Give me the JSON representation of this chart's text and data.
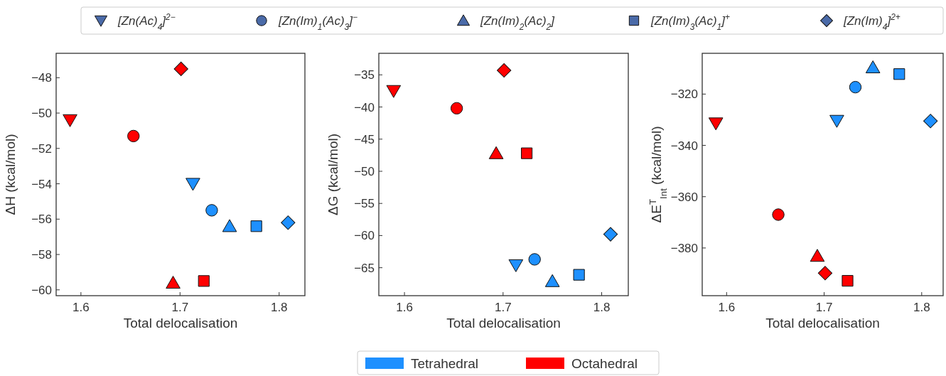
{
  "chart_data": [
    {
      "type": "scatter",
      "xlabel": "Total delocalisation",
      "ylabel": "ΔH (kcal/mol)",
      "xlim": [
        1.575,
        1.826
      ],
      "xticks": [
        1.6,
        1.7,
        1.8
      ],
      "ylim": [
        -60.33,
        -46.62
      ],
      "yticks": [
        -60,
        -58,
        -56,
        -54,
        -52,
        -50,
        -48
      ],
      "grid": false,
      "series": [
        {
          "marker": "triangle-down",
          "x": [
            1.713,
            1.589
          ],
          "values": [
            -54.0,
            -50.4
          ],
          "colors": [
            "#1e90ff",
            "#ff0000"
          ]
        },
        {
          "marker": "circle",
          "x": [
            1.732,
            1.653
          ],
          "values": [
            -55.5,
            -51.3
          ],
          "colors": [
            "#1e90ff",
            "#ff0000"
          ]
        },
        {
          "marker": "triangle",
          "x": [
            1.75,
            1.693
          ],
          "values": [
            -56.4,
            -59.6
          ],
          "colors": [
            "#1e90ff",
            "#ff0000"
          ]
        },
        {
          "marker": "square",
          "x": [
            1.777,
            1.724
          ],
          "values": [
            -56.4,
            -59.5
          ],
          "colors": [
            "#1e90ff",
            "#ff0000"
          ]
        },
        {
          "marker": "diamond",
          "x": [
            1.809,
            1.701
          ],
          "values": [
            -56.2,
            -47.5
          ],
          "colors": [
            "#1e90ff",
            "#ff0000"
          ]
        }
      ]
    },
    {
      "type": "scatter",
      "xlabel": "Total delocalisation",
      "ylabel": "ΔG (kcal/mol)",
      "xlim": [
        1.574,
        1.827
      ],
      "xticks": [
        1.6,
        1.7,
        1.8
      ],
      "ylim": [
        -69.35,
        -31.65
      ],
      "yticks": [
        -65,
        -60,
        -55,
        -50,
        -45,
        -40,
        -35
      ],
      "grid": false,
      "series": [
        {
          "marker": "triangle-down",
          "x": [
            1.713,
            1.589
          ],
          "values": [
            -64.6,
            -37.5
          ],
          "colors": [
            "#1e90ff",
            "#ff0000"
          ]
        },
        {
          "marker": "circle",
          "x": [
            1.732,
            1.653
          ],
          "values": [
            -63.7,
            -40.2
          ],
          "colors": [
            "#1e90ff",
            "#ff0000"
          ]
        },
        {
          "marker": "triangle",
          "x": [
            1.75,
            1.693
          ],
          "values": [
            -67.1,
            -47.2
          ],
          "colors": [
            "#1e90ff",
            "#ff0000"
          ]
        },
        {
          "marker": "square",
          "x": [
            1.777,
            1.724
          ],
          "values": [
            -66.1,
            -47.2
          ],
          "colors": [
            "#1e90ff",
            "#ff0000"
          ]
        },
        {
          "marker": "diamond",
          "x": [
            1.809,
            1.701
          ],
          "values": [
            -59.8,
            -34.3
          ],
          "colors": [
            "#1e90ff",
            "#ff0000"
          ]
        }
      ]
    },
    {
      "type": "scatter",
      "xlabel": "Total delocalisation",
      "ylabel": "ΔE$^{T}$$_{Int}$ (kcal/mol)",
      "xlim": [
        1.575,
        1.822
      ],
      "xticks": [
        1.6,
        1.7,
        1.8
      ],
      "ylim": [
        -398.6,
        -304.1
      ],
      "yticks": [
        -380,
        -360,
        -340,
        -320
      ],
      "grid": false,
      "series": [
        {
          "marker": "triangle-down",
          "x": [
            1.713,
            1.589
          ],
          "values": [
            -330.4,
            -331.4
          ],
          "colors": [
            "#1e90ff",
            "#ff0000"
          ]
        },
        {
          "marker": "circle",
          "x": [
            1.732,
            1.653
          ],
          "values": [
            -317.3,
            -367.0
          ],
          "colors": [
            "#1e90ff",
            "#ff0000"
          ]
        },
        {
          "marker": "triangle",
          "x": [
            1.75,
            1.693
          ],
          "values": [
            -309.6,
            -383.1
          ],
          "colors": [
            "#1e90ff",
            "#ff0000"
          ]
        },
        {
          "marker": "square",
          "x": [
            1.777,
            1.724
          ],
          "values": [
            -312.2,
            -392.8
          ],
          "colors": [
            "#1e90ff",
            "#ff0000"
          ]
        },
        {
          "marker": "diamond",
          "x": [
            1.809,
            1.701
          ],
          "values": [
            -330.5,
            -389.8
          ],
          "colors": [
            "#1e90ff",
            "#ff0000"
          ]
        }
      ]
    },
    {
      "type": "other",
      "categories": [
        "[Zn(Ac)$_{4}$]$^{2−}$",
        "[Zn(Im)$_{1}$(Ac)$_{3}$]$^{−}$",
        "[Zn(Im)$_{2}$(Ac)$_{2}$]",
        "[Zn(Im)$_{3}$(Ac)$_{1}$]$^{+}$",
        "[Zn(Im)$_{4}$]$^{2+}$"
      ]
    },
    {
      "type": "other",
      "categories": [
        "Tetrahedral",
        "Octahedral"
      ],
      "colors": [
        "#1e90ff",
        "#ff0000"
      ]
    }
  ]
}
